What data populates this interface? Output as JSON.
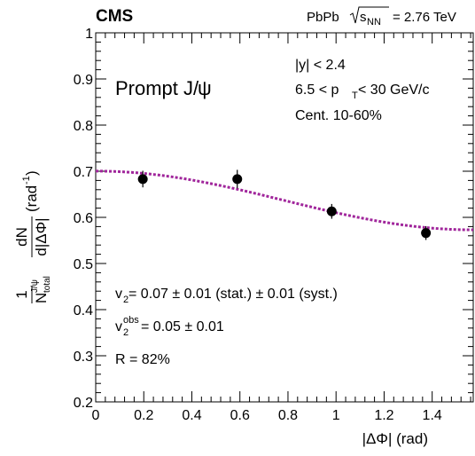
{
  "chart_data": {
    "type": "scatter",
    "header": {
      "experiment": "CMS",
      "system": "PbPb",
      "energy_sym": "s",
      "energy_sub": "NN",
      "energy_value": "= 2.76 TeV"
    },
    "xlabel": "|ΔΦ| (rad)",
    "ylabel": {
      "frac_num": "1",
      "N": "N",
      "N_sup": "J/ψ",
      "N_sub": "total",
      "dN": "dN",
      "dphi": "d|ΔΦ|",
      "unit": "(rad",
      "unit_sup": "-1",
      "unit_close": ")"
    },
    "xlim": [
      0,
      1.5708
    ],
    "ylim": [
      0.2,
      1.0
    ],
    "x_ticks": [
      0,
      0.2,
      0.4,
      0.6,
      0.8,
      1.0,
      1.2,
      1.4
    ],
    "x_tick_labels": [
      "0",
      "0.2",
      "0.4",
      "0.6",
      "0.8",
      "1",
      "1.2",
      "1.4"
    ],
    "y_ticks": [
      0.2,
      0.3,
      0.4,
      0.5,
      0.6,
      0.7,
      0.8,
      0.9,
      1.0
    ],
    "y_tick_labels": [
      "0.2",
      "0.3",
      "0.4",
      "0.5",
      "0.6",
      "0.7",
      "0.8",
      "0.9",
      "1"
    ],
    "grid": false,
    "series": [
      {
        "points": [
          {
            "x": 0.196,
            "y": 0.683,
            "err": 0.018
          },
          {
            "x": 0.589,
            "y": 0.683,
            "err": 0.02
          },
          {
            "x": 0.982,
            "y": 0.613,
            "err": 0.016
          },
          {
            "x": 1.374,
            "y": 0.566,
            "err": 0.015
          }
        ],
        "color": "#000000"
      }
    ],
    "fit": {
      "color": "#a0259b",
      "form": "A(1 + 2 v2 cos 2x)",
      "A": 0.6366,
      "v2": 0.05
    },
    "annotations": {
      "title_main": "Prompt J/",
      "title_psi": "ψ",
      "cut_y": "|y| < 2.4",
      "cut_pt_pre": "6.5 < p",
      "cut_pt_sub": "T",
      "cut_pt_post": " < 30 GeV/c",
      "cent": "Cent. 10-60%",
      "v2_pre": "v",
      "v2_sub": "2",
      "v2_text": " = 0.07 ± 0.01 (stat.) ± 0.01 (syst.)",
      "v2obs_pre": "v",
      "v2obs_sub": "2",
      "v2obs_sup": "obs",
      "v2obs_text": " = 0.05 ± 0.01",
      "r_text": "R = 82%"
    }
  }
}
